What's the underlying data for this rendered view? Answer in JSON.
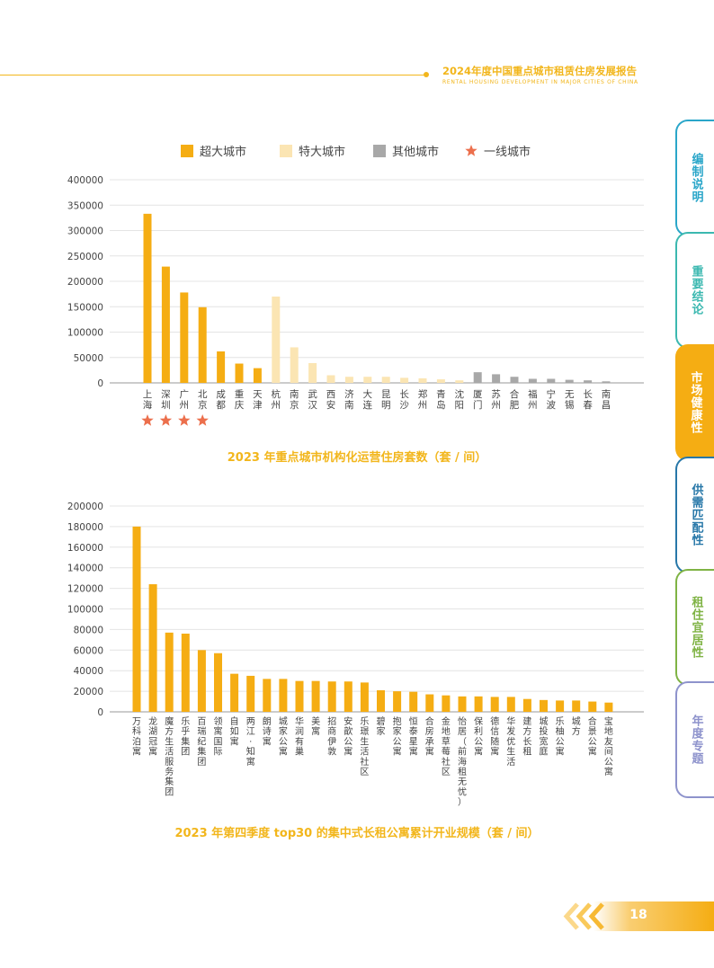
{
  "header": {
    "year": "2024",
    "title": "年度中国重点城市租赁住房发展报告",
    "subtitle": "RENTAL HOUSING DEVELOPMENT IN MAJOR CITIES OF CHINA"
  },
  "side_tabs": [
    {
      "label": "编制说明",
      "color": "#2aa6c9",
      "active": false
    },
    {
      "label": "重要结论",
      "color": "#3bb8b0",
      "active": false
    },
    {
      "label": "市场健康性",
      "color": "#f5ad13",
      "active": true
    },
    {
      "label": "供需匹配性",
      "color": "#2777a8",
      "active": false
    },
    {
      "label": "租住宜居性",
      "color": "#7fb344",
      "active": false
    },
    {
      "label": "年度专题",
      "color": "#8e93cc",
      "active": false
    }
  ],
  "page_number": "18",
  "chart_data": [
    {
      "type": "bar",
      "title": "2023 年重点城市机构化运营住房套数（套 / 间）",
      "legend": [
        {
          "label": "超大城市",
          "marker": "square",
          "color": "#f5ad13"
        },
        {
          "label": "特大城市",
          "marker": "square",
          "color": "#fbe5b3"
        },
        {
          "label": "其他城市",
          "marker": "square",
          "color": "#a8a8a8"
        },
        {
          "label": "一线城市",
          "marker": "star",
          "color": "#ec6f4c"
        }
      ],
      "legend_position": "top-center",
      "ylim": [
        0,
        400000
      ],
      "yticks": [
        0,
        50000,
        100000,
        150000,
        200000,
        250000,
        300000,
        350000,
        400000
      ],
      "grid": true,
      "categories": [
        "上海",
        "深圳",
        "广州",
        "北京",
        "成都",
        "重庆",
        "天津",
        "杭州",
        "南京",
        "武汉",
        "西安",
        "济南",
        "大连",
        "昆明",
        "长沙",
        "郑州",
        "青岛",
        "沈阳",
        "厦门",
        "苏州",
        "合肥",
        "福州",
        "宁波",
        "无锡",
        "长春",
        "南昌"
      ],
      "values": [
        333000,
        229000,
        178000,
        149000,
        62000,
        38000,
        29000,
        170000,
        70000,
        39000,
        15000,
        12000,
        12000,
        12000,
        10000,
        9000,
        7000,
        5000,
        21000,
        17000,
        12000,
        8000,
        8000,
        6000,
        5000,
        3000
      ],
      "groups": [
        "超大城市",
        "超大城市",
        "超大城市",
        "超大城市",
        "超大城市",
        "超大城市",
        "超大城市",
        "特大城市",
        "特大城市",
        "特大城市",
        "特大城市",
        "特大城市",
        "特大城市",
        "特大城市",
        "特大城市",
        "特大城市",
        "特大城市",
        "特大城市",
        "其他城市",
        "其他城市",
        "其他城市",
        "其他城市",
        "其他城市",
        "其他城市",
        "其他城市",
        "其他城市"
      ],
      "first_tier": [
        "上海",
        "深圳",
        "广州",
        "北京"
      ]
    },
    {
      "type": "bar",
      "title": "2023 年第四季度 top30 的集中式长租公寓累计开业规模（套 / 间）",
      "ylim": [
        0,
        200000
      ],
      "yticks": [
        0,
        20000,
        40000,
        60000,
        80000,
        100000,
        120000,
        140000,
        160000,
        180000,
        200000
      ],
      "grid": true,
      "color": "#f5ad13",
      "categories": [
        "万科泊寓",
        "龙湖冠寓",
        "魔方生活服务集团",
        "乐乎集团",
        "百瑞纪集团",
        "领寓国际",
        "自如寓",
        "两江·知寓",
        "朗诗寓",
        "城家公寓",
        "华润有巢",
        "美寓",
        "招商伊敦",
        "安歆公寓",
        "乐璟生活社区",
        "碧家",
        "抱家公寓",
        "恒泰星寓",
        "合房承寓",
        "金地草莓社区",
        "怡居（前海租无忧）",
        "保利公寓",
        "德信随寓",
        "华发优生活",
        "建方长租",
        "城投宽庭",
        "乐柚公寓",
        "城方",
        "合景公寓",
        "宝地友间公寓"
      ],
      "values": [
        180000,
        124000,
        77000,
        76000,
        60000,
        57000,
        37000,
        35000,
        32000,
        32000,
        30000,
        30000,
        29500,
        29500,
        28500,
        21000,
        20000,
        19500,
        17000,
        16000,
        15000,
        15000,
        14500,
        14500,
        12500,
        11500,
        11000,
        11000,
        10000,
        9000
      ]
    }
  ]
}
